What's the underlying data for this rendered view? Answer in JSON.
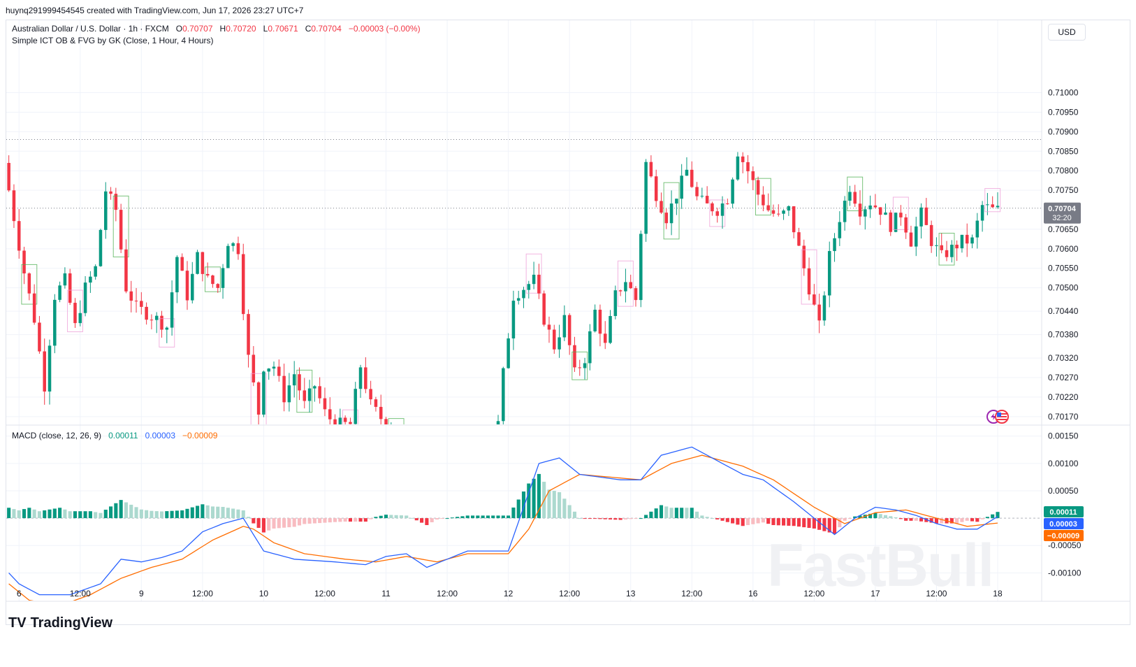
{
  "header": {
    "attribution": "huynq291999454545 created with TradingView.com, Jun 17, 2026 23:27 UTC+7"
  },
  "legend": {
    "symbol": "Australian Dollar / U.S. Dollar · 1h · FXCM",
    "o_label": "O",
    "o_value": "0.70707",
    "h_label": "H",
    "h_value": "0.70720",
    "l_label": "L",
    "l_value": "0.70671",
    "c_label": "C",
    "c_value": "0.70704",
    "change": "−0.00003 (−0.00%)",
    "indicator": "Simple ICT OB & FVG by GK  (Close, 1 Hour, 4 Hours)"
  },
  "currency_button": "USD",
  "macd_legend": {
    "label": "MACD (close, 12, 26, 9)",
    "hist": "0.00011",
    "macd": "0.00003",
    "signal": "−0.00009"
  },
  "footer": {
    "brand": "TradingView",
    "mark": "TV"
  },
  "watermark": "FastBull",
  "colors": {
    "up": "#089981",
    "down": "#f23645",
    "up_light": "#acd9cf",
    "down_light": "#f8bcc1",
    "macd": "#2962ff",
    "signal": "#ff6d00"
  },
  "chart_data": [
    {
      "type": "candlestick",
      "title": "Australian Dollar / U.S. Dollar · 1h · FXCM",
      "ylim": [
        0.7015,
        0.7113
      ],
      "yticks": [
        "0.71000",
        "0.70950",
        "0.70900",
        "0.70850",
        "0.70800",
        "0.70750",
        "0.70650",
        "0.70600",
        "0.70550",
        "0.70500",
        "0.70440",
        "0.70380",
        "0.70320",
        "0.70270",
        "0.70220",
        "0.70170"
      ],
      "x_labels": [
        {
          "bar": 2,
          "label": "6"
        },
        {
          "bar": 14,
          "label": "12:00"
        },
        {
          "bar": 26,
          "label": "9"
        },
        {
          "bar": 38,
          "label": "12:00"
        },
        {
          "bar": 50,
          "label": "10"
        },
        {
          "bar": 62,
          "label": "12:00"
        },
        {
          "bar": 74,
          "label": "11"
        },
        {
          "bar": 86,
          "label": "12:00"
        },
        {
          "bar": 98,
          "label": "12"
        },
        {
          "bar": 110,
          "label": "12:00"
        },
        {
          "bar": 122,
          "label": "13"
        },
        {
          "bar": 134,
          "label": "12:00"
        },
        {
          "bar": 146,
          "label": "16"
        },
        {
          "bar": 158,
          "label": "12:00"
        },
        {
          "bar": 170,
          "label": "17"
        },
        {
          "bar": 182,
          "label": "12:00"
        },
        {
          "bar": 194,
          "label": "18"
        }
      ],
      "waypoints": [
        [
          0,
          0.7082
        ],
        [
          4,
          0.7054
        ],
        [
          6,
          0.7042
        ],
        [
          8,
          0.7025
        ],
        [
          10,
          0.7048
        ],
        [
          12,
          0.7052
        ],
        [
          14,
          0.704
        ],
        [
          16,
          0.705
        ],
        [
          18,
          0.7055
        ],
        [
          20,
          0.7075
        ],
        [
          22,
          0.707
        ],
        [
          24,
          0.705
        ],
        [
          26,
          0.7045
        ],
        [
          30,
          0.7042
        ],
        [
          32,
          0.704
        ],
        [
          34,
          0.7058
        ],
        [
          36,
          0.7048
        ],
        [
          38,
          0.7058
        ],
        [
          40,
          0.7052
        ],
        [
          42,
          0.705
        ],
        [
          44,
          0.7062
        ],
        [
          46,
          0.706
        ],
        [
          47,
          0.7045
        ],
        [
          48,
          0.7032
        ],
        [
          50,
          0.7018
        ],
        [
          51,
          0.703
        ],
        [
          53,
          0.703
        ],
        [
          55,
          0.7022
        ],
        [
          57,
          0.7028
        ],
        [
          59,
          0.702
        ],
        [
          61,
          0.7025
        ],
        [
          63,
          0.7018
        ],
        [
          65,
          0.7015
        ],
        [
          68,
          0.7015
        ],
        [
          70,
          0.703
        ],
        [
          72,
          0.702
        ],
        [
          75,
          0.7015
        ],
        [
          97,
          0.7015
        ],
        [
          98,
          0.7028
        ],
        [
          100,
          0.7048
        ],
        [
          102,
          0.705
        ],
        [
          104,
          0.7052
        ],
        [
          106,
          0.7042
        ],
        [
          108,
          0.7035
        ],
        [
          110,
          0.7042
        ],
        [
          112,
          0.7028
        ],
        [
          114,
          0.7032
        ],
        [
          116,
          0.7044
        ],
        [
          118,
          0.7035
        ],
        [
          120,
          0.7048
        ],
        [
          122,
          0.7052
        ],
        [
          124,
          0.7047
        ],
        [
          126,
          0.7082
        ],
        [
          128,
          0.7074
        ],
        [
          130,
          0.7068
        ],
        [
          132,
          0.7074
        ],
        [
          134,
          0.708
        ],
        [
          136,
          0.7073
        ],
        [
          138,
          0.7071
        ],
        [
          140,
          0.707
        ],
        [
          142,
          0.7073
        ],
        [
          144,
          0.7085
        ],
        [
          146,
          0.708
        ],
        [
          148,
          0.7074
        ],
        [
          150,
          0.707
        ],
        [
          152,
          0.7068
        ],
        [
          154,
          0.707
        ],
        [
          156,
          0.706
        ],
        [
          158,
          0.705
        ],
        [
          160,
          0.704
        ],
        [
          162,
          0.7058
        ],
        [
          164,
          0.7068
        ],
        [
          166,
          0.7076
        ],
        [
          168,
          0.707
        ],
        [
          170,
          0.7072
        ],
        [
          172,
          0.707
        ],
        [
          174,
          0.7066
        ],
        [
          176,
          0.7069
        ],
        [
          178,
          0.7062
        ],
        [
          180,
          0.7069
        ],
        [
          182,
          0.7062
        ],
        [
          184,
          0.7058
        ],
        [
          186,
          0.706
        ],
        [
          188,
          0.7062
        ],
        [
          190,
          0.7062
        ],
        [
          192,
          0.7071
        ],
        [
          194,
          0.707
        ]
      ],
      "reference_lines": [
        0.7088,
        0.70704
      ],
      "last_price": "0.70704",
      "countdown": "32:20",
      "gaps": [
        [
          76,
          96
        ]
      ]
    },
    {
      "type": "bar",
      "title": "MACD (close, 12, 26, 9)",
      "ylim": [
        -0.0012,
        0.00165
      ],
      "yticks": [
        "0.00150",
        "0.00100",
        "0.00050",
        "-0.00050",
        "-0.00100"
      ],
      "macd_waypoints": [
        [
          0,
          -0.001
        ],
        [
          2,
          -0.0012
        ],
        [
          6,
          -0.0014
        ],
        [
          12,
          -0.0014
        ],
        [
          18,
          -0.0012
        ],
        [
          22,
          -0.00075
        ],
        [
          26,
          -0.0008
        ],
        [
          30,
          -0.00072
        ],
        [
          34,
          -0.0006
        ],
        [
          38,
          -0.00025
        ],
        [
          42,
          -0.0001
        ],
        [
          46,
          0.0
        ],
        [
          50,
          -0.0006
        ],
        [
          56,
          -0.00075
        ],
        [
          64,
          -0.0008
        ],
        [
          70,
          -0.00085
        ],
        [
          74,
          -0.0007
        ],
        [
          78,
          -0.00065
        ],
        [
          82,
          -0.0009
        ],
        [
          86,
          -0.00075
        ],
        [
          90,
          -0.0006
        ],
        [
          94,
          -0.0006
        ],
        [
          98,
          -0.0006
        ],
        [
          101,
          0.0002
        ],
        [
          104,
          0.001
        ],
        [
          108,
          0.0011
        ],
        [
          112,
          0.0008
        ],
        [
          116,
          0.00075
        ],
        [
          120,
          0.0007
        ],
        [
          124,
          0.0007
        ],
        [
          128,
          0.00115
        ],
        [
          134,
          0.0013
        ],
        [
          140,
          0.001
        ],
        [
          144,
          0.0008
        ],
        [
          148,
          0.0007
        ],
        [
          154,
          0.0003
        ],
        [
          158,
          0.0
        ],
        [
          162,
          -0.0003
        ],
        [
          166,
          0.0
        ],
        [
          170,
          0.0002
        ],
        [
          174,
          0.00015
        ],
        [
          178,
          5e-05
        ],
        [
          182,
          -0.0001
        ],
        [
          186,
          -0.0002
        ],
        [
          190,
          -0.0002
        ],
        [
          194,
          3e-05
        ]
      ],
      "signal_waypoints": [
        [
          0,
          -0.0012
        ],
        [
          4,
          -0.0015
        ],
        [
          10,
          -0.0016
        ],
        [
          16,
          -0.0014
        ],
        [
          22,
          -0.0011
        ],
        [
          28,
          -0.0009
        ],
        [
          34,
          -0.00075
        ],
        [
          40,
          -0.0004
        ],
        [
          46,
          -0.00015
        ],
        [
          48,
          -0.0002
        ],
        [
          52,
          -0.00045
        ],
        [
          58,
          -0.00065
        ],
        [
          66,
          -0.00075
        ],
        [
          72,
          -0.0008
        ],
        [
          78,
          -0.0007
        ],
        [
          84,
          -0.0008
        ],
        [
          90,
          -0.00065
        ],
        [
          98,
          -0.00065
        ],
        [
          102,
          -0.0002
        ],
        [
          106,
          0.0005
        ],
        [
          112,
          0.0008
        ],
        [
          118,
          0.00075
        ],
        [
          124,
          0.0007
        ],
        [
          130,
          0.001
        ],
        [
          136,
          0.00115
        ],
        [
          144,
          0.00095
        ],
        [
          150,
          0.0007
        ],
        [
          158,
          0.0002
        ],
        [
          164,
          -0.0001
        ],
        [
          170,
          0.0001
        ],
        [
          176,
          0.00015
        ],
        [
          182,
          0.0
        ],
        [
          188,
          -0.00015
        ],
        [
          194,
          -9e-05
        ]
      ],
      "last_values": {
        "hist": "0.00011",
        "macd": "0.00003",
        "signal": "-0.00009"
      }
    }
  ]
}
